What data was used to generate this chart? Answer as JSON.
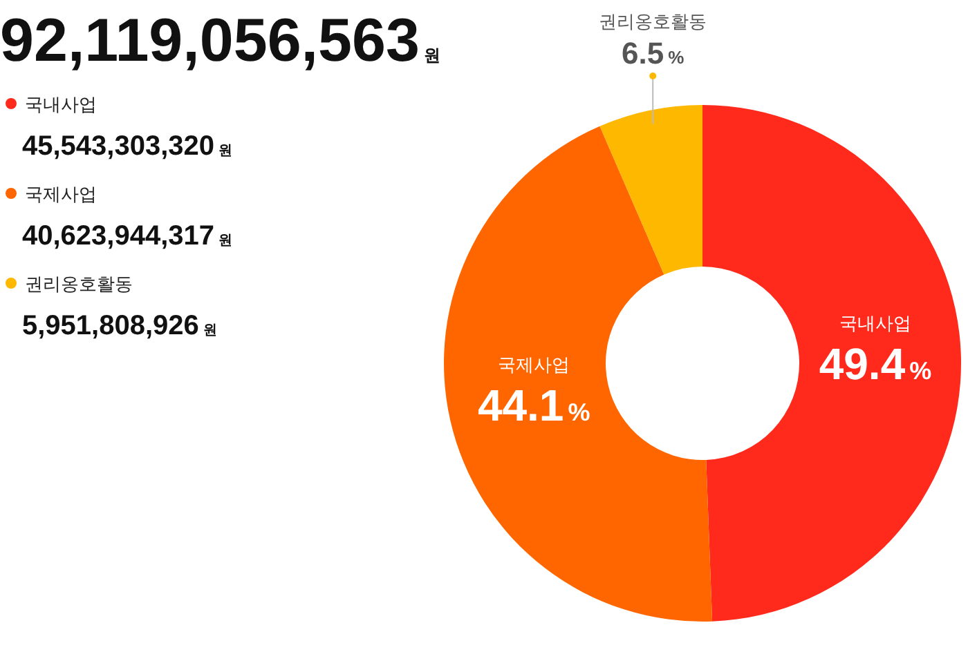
{
  "chart_data": {
    "type": "donut",
    "title": "92,119,056,563원",
    "categories": [
      "국내사업",
      "국제사업",
      "권리옹호활동"
    ],
    "values": [
      49.4,
      44.1,
      6.5
    ],
    "colors": [
      "#ff2a1c",
      "#ff6600",
      "#ffb800"
    ],
    "value_labels": [
      "49.4%",
      "44.1%",
      "6.5%"
    ],
    "legend": "top left",
    "annotations": [
      "45,543,303,320원",
      "40,623,944,317원",
      "5,951,808,926원"
    ]
  }
}
